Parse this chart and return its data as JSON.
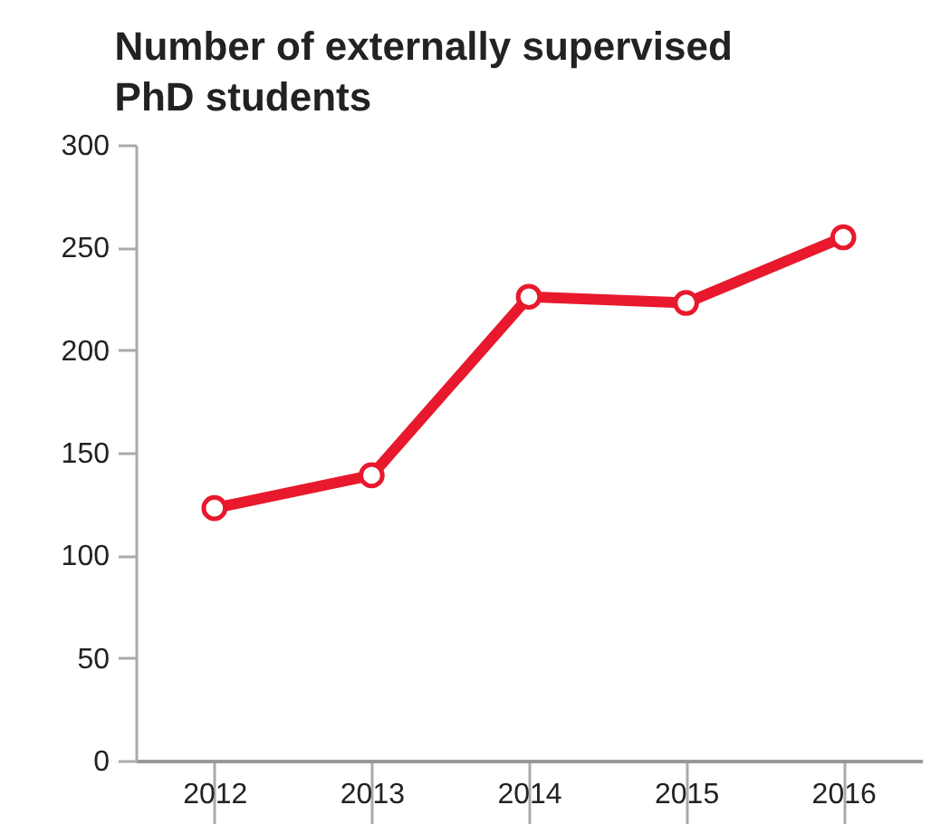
{
  "chart_data": {
    "type": "line",
    "title": "Number of externally supervised PhD students",
    "categories": [
      "2012",
      "2013",
      "2014",
      "2015",
      "2016"
    ],
    "series": [
      {
        "color": "#e8192c",
        "values": [
          123,
          139,
          226,
          223,
          255
        ]
      }
    ],
    "ylim": [
      0,
      300
    ],
    "yticks": [
      0,
      50,
      100,
      150,
      200,
      250,
      300
    ],
    "grid": false,
    "legend": false,
    "marker": "circle",
    "line_style": "solid"
  }
}
